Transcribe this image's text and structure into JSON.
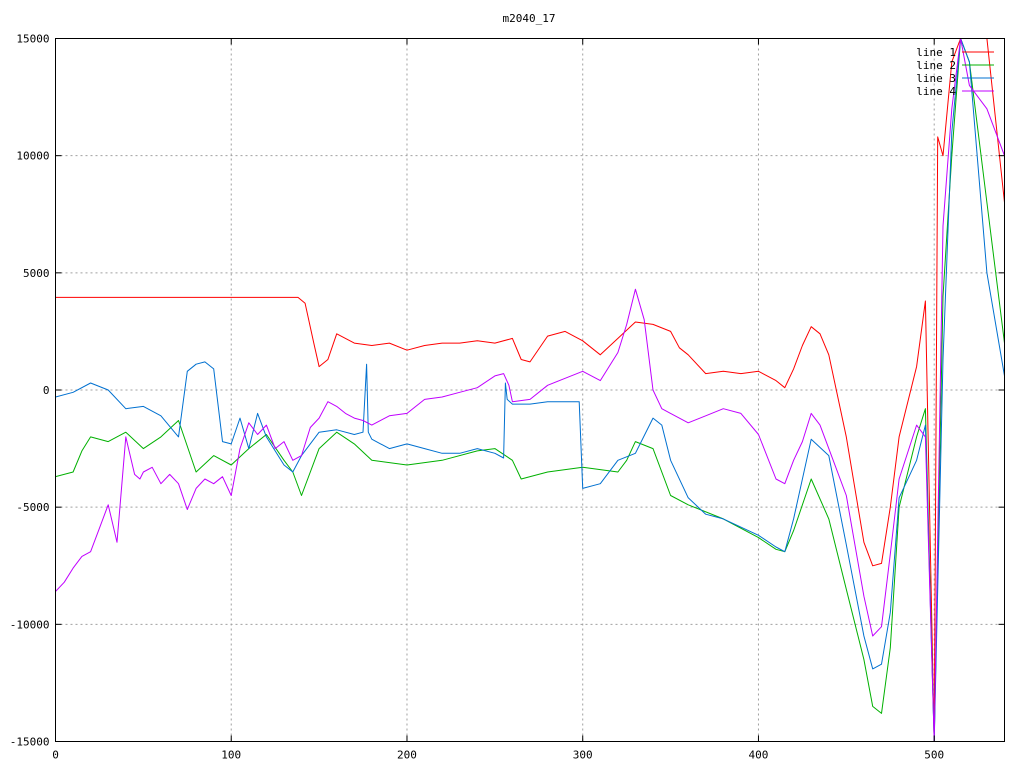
{
  "chart_data": {
    "type": "line",
    "title": "m2040_17",
    "xlabel": "",
    "ylabel": "",
    "xlim": [
      0,
      540
    ],
    "ylim": [
      -15000,
      15000
    ],
    "xticks": [
      0,
      100,
      200,
      300,
      400,
      500
    ],
    "yticks": [
      -15000,
      -10000,
      -5000,
      0,
      5000,
      10000,
      15000
    ],
    "grid": true,
    "legend_position": "top-right",
    "series": [
      {
        "name": "line 1",
        "color": "#ff0000",
        "x": [
          0,
          20,
          40,
          60,
          80,
          100,
          120,
          138,
          142,
          147,
          150,
          155,
          160,
          170,
          180,
          190,
          200,
          210,
          220,
          230,
          240,
          250,
          260,
          265,
          270,
          280,
          290,
          300,
          310,
          320,
          330,
          340,
          350,
          355,
          360,
          370,
          380,
          390,
          400,
          410,
          415,
          420,
          425,
          430,
          435,
          440,
          450,
          460,
          465,
          470,
          475,
          480,
          490,
          495,
          500,
          502,
          505,
          510,
          515,
          520,
          525,
          530,
          540
        ],
        "values": [
          3950,
          3950,
          3950,
          3950,
          3950,
          3950,
          3950,
          3950,
          3700,
          2000,
          1000,
          1300,
          2400,
          2000,
          1900,
          2000,
          1700,
          1900,
          2000,
          2000,
          2100,
          2000,
          2200,
          1300,
          1200,
          2300,
          2500,
          2100,
          1500,
          2200,
          2900,
          2800,
          2500,
          1800,
          1500,
          700,
          800,
          700,
          800,
          400,
          100,
          900,
          1900,
          2700,
          2400,
          1500,
          -2000,
          -6500,
          -7500,
          -7400,
          -5000,
          -2000,
          1000,
          3800,
          -15000,
          10800,
          10000,
          14000,
          15000,
          15000,
          15000,
          15000,
          8000
        ]
      },
      {
        "name": "line 2",
        "color": "#00b000",
        "x": [
          0,
          10,
          15,
          20,
          30,
          40,
          50,
          60,
          70,
          80,
          90,
          100,
          110,
          120,
          130,
          135,
          140,
          150,
          160,
          170,
          180,
          200,
          220,
          240,
          250,
          260,
          265,
          280,
          300,
          320,
          325,
          330,
          340,
          350,
          360,
          380,
          400,
          410,
          415,
          420,
          430,
          440,
          450,
          460,
          465,
          470,
          475,
          480,
          490,
          495,
          500,
          505,
          510,
          515,
          520,
          530,
          540
        ],
        "values": [
          -3700,
          -3500,
          -2600,
          -2000,
          -2200,
          -1800,
          -2500,
          -2000,
          -1300,
          -3500,
          -2800,
          -3200,
          -2500,
          -1900,
          -3000,
          -3500,
          -4500,
          -2500,
          -1800,
          -2300,
          -3000,
          -3200,
          -3000,
          -2600,
          -2500,
          -3000,
          -3800,
          -3500,
          -3300,
          -3500,
          -3000,
          -2200,
          -2500,
          -4500,
          -4900,
          -5500,
          -6300,
          -6800,
          -6900,
          -6000,
          -3800,
          -5500,
          -8500,
          -11500,
          -13500,
          -13800,
          -11000,
          -5000,
          -2000,
          -800,
          -15000,
          4000,
          10000,
          15000,
          14000,
          8000,
          2000
        ]
      },
      {
        "name": "line 3",
        "color": "#0070d0",
        "x": [
          0,
          10,
          20,
          30,
          40,
          50,
          60,
          70,
          75,
          80,
          85,
          90,
          95,
          100,
          105,
          110,
          115,
          120,
          130,
          135,
          140,
          150,
          160,
          170,
          175,
          177,
          178,
          180,
          190,
          200,
          210,
          220,
          230,
          240,
          250,
          255,
          256,
          257,
          260,
          270,
          280,
          290,
          298,
          300,
          310,
          320,
          330,
          340,
          345,
          350,
          360,
          370,
          380,
          400,
          410,
          415,
          420,
          430,
          440,
          450,
          460,
          465,
          470,
          475,
          480,
          490,
          495,
          500,
          505,
          510,
          515,
          520,
          530,
          540
        ],
        "values": [
          -300,
          -100,
          300,
          0,
          -800,
          -700,
          -1100,
          -2000,
          800,
          1100,
          1200,
          900,
          -2200,
          -2300,
          -1200,
          -2500,
          -1000,
          -2000,
          -3200,
          -3500,
          -2800,
          -1800,
          -1700,
          -1900,
          -1800,
          1100,
          -1800,
          -2100,
          -2500,
          -2300,
          -2500,
          -2700,
          -2700,
          -2500,
          -2700,
          -2900,
          300,
          -400,
          -600,
          -600,
          -500,
          -500,
          -500,
          -4200,
          -4000,
          -3000,
          -2700,
          -1200,
          -1500,
          -3000,
          -4600,
          -5300,
          -5500,
          -6200,
          -6700,
          -6900,
          -5500,
          -2100,
          -2800,
          -6600,
          -10500,
          -11900,
          -11700,
          -9500,
          -4600,
          -3000,
          -1500,
          -15000,
          1300,
          11000,
          15000,
          14000,
          5000,
          600
        ]
      },
      {
        "name": "line 4",
        "color": "#c000ff",
        "x": [
          0,
          5,
          10,
          15,
          20,
          25,
          30,
          35,
          40,
          45,
          48,
          50,
          55,
          60,
          65,
          70,
          75,
          80,
          85,
          90,
          95,
          100,
          105,
          110,
          115,
          120,
          125,
          130,
          135,
          140,
          145,
          150,
          155,
          160,
          165,
          170,
          175,
          180,
          190,
          200,
          210,
          220,
          230,
          240,
          250,
          255,
          258,
          260,
          270,
          280,
          290,
          300,
          310,
          320,
          325,
          330,
          335,
          340,
          345,
          350,
          360,
          370,
          380,
          390,
          400,
          410,
          415,
          420,
          425,
          430,
          435,
          440,
          450,
          460,
          465,
          470,
          475,
          480,
          490,
          495,
          500,
          505,
          510,
          515,
          520,
          530,
          540
        ],
        "values": [
          -8600,
          -8200,
          -7600,
          -7100,
          -6900,
          -5900,
          -4900,
          -6500,
          -2000,
          -3600,
          -3800,
          -3500,
          -3300,
          -4000,
          -3600,
          -4000,
          -5100,
          -4200,
          -3800,
          -4000,
          -3700,
          -4500,
          -2500,
          -1400,
          -1900,
          -1500,
          -2500,
          -2200,
          -3000,
          -2800,
          -1600,
          -1200,
          -500,
          -700,
          -1000,
          -1200,
          -1300,
          -1500,
          -1100,
          -1000,
          -400,
          -300,
          -100,
          100,
          600,
          700,
          200,
          -500,
          -400,
          200,
          500,
          800,
          400,
          1600,
          2800,
          4300,
          3000,
          0,
          -800,
          -1000,
          -1400,
          -1100,
          -800,
          -1000,
          -1900,
          -3800,
          -4000,
          -3000,
          -2200,
          -1000,
          -1500,
          -2500,
          -4500,
          -8800,
          -10500,
          -10100,
          -7000,
          -3800,
          -1500,
          -2000,
          -15000,
          7000,
          12000,
          15000,
          13000,
          12000,
          10000
        ]
      }
    ]
  }
}
